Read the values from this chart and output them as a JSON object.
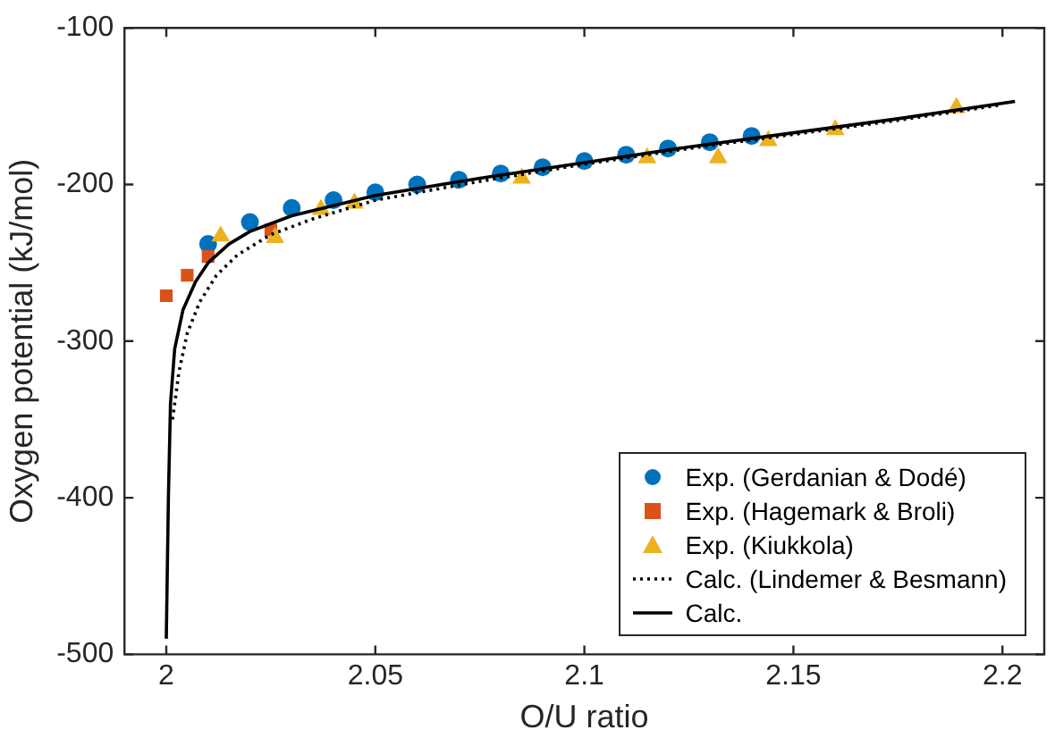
{
  "chart_data": {
    "type": "scatter",
    "xlabel": "O/U ratio",
    "ylabel": "Oxygen potential (kJ/mol)",
    "xlim": [
      1.99,
      2.21
    ],
    "xticks": [
      2,
      2.05,
      2.1,
      2.15,
      2.2
    ],
    "ylim": [
      -500,
      -100
    ],
    "yticks": [
      -500,
      -400,
      -300,
      -200,
      -100
    ],
    "grid": false,
    "legend": "bottom right",
    "series": [
      {
        "name": "Exp. (Gerdanian & Dodé)",
        "marker": "circle",
        "color": "#0072bd",
        "x": [
          2.01,
          2.02,
          2.03,
          2.04,
          2.05,
          2.06,
          2.07,
          2.08,
          2.09,
          2.1,
          2.11,
          2.12,
          2.13,
          2.14
        ],
        "values": [
          -238,
          -224,
          -215,
          -210,
          -205,
          -200,
          -197,
          -193,
          -189,
          -185,
          -181,
          -177,
          -173,
          -169
        ]
      },
      {
        "name": "Exp. (Hagemark & Broli)",
        "marker": "square",
        "color": "#d95319",
        "x": [
          2.0,
          2.005,
          2.01,
          2.025
        ],
        "values": [
          -271,
          -258,
          -246,
          -229
        ]
      },
      {
        "name": "Exp. (Kiukkola)",
        "marker": "triangle",
        "color": "#edb120",
        "x": [
          2.013,
          2.026,
          2.037,
          2.045,
          2.085,
          2.115,
          2.132,
          2.144,
          2.16,
          2.189
        ],
        "values": [
          -233,
          -234,
          -216,
          -212,
          -196,
          -183,
          -183,
          -172,
          -165,
          -151
        ]
      },
      {
        "name": "Calc. (Lindemer & Besmann)",
        "type": "line",
        "line_style": "dotted",
        "marker": "none",
        "color": "#000000",
        "x": [
          2.0015,
          2.003,
          2.005,
          2.008,
          2.012,
          2.017,
          2.025,
          2.035,
          2.05,
          2.075,
          2.1,
          2.125,
          2.15,
          2.175,
          2.2
        ],
        "values": [
          -350,
          -320,
          -295,
          -275,
          -258,
          -245,
          -232,
          -222,
          -210,
          -198,
          -187,
          -177,
          -168,
          -159,
          -149
        ]
      },
      {
        "name": "Calc.",
        "type": "line",
        "line_style": "solid",
        "marker": "none",
        "color": "#000000",
        "x": [
          2.0,
          2.0005,
          2.001,
          2.002,
          2.004,
          2.007,
          2.01,
          2.015,
          2.02,
          2.03,
          2.05,
          2.075,
          2.1,
          2.125,
          2.15,
          2.175,
          2.203
        ],
        "values": [
          -490,
          -400,
          -340,
          -305,
          -280,
          -262,
          -250,
          -238,
          -230,
          -220,
          -207,
          -196,
          -186,
          -176,
          -167,
          -158,
          -147
        ]
      }
    ]
  }
}
